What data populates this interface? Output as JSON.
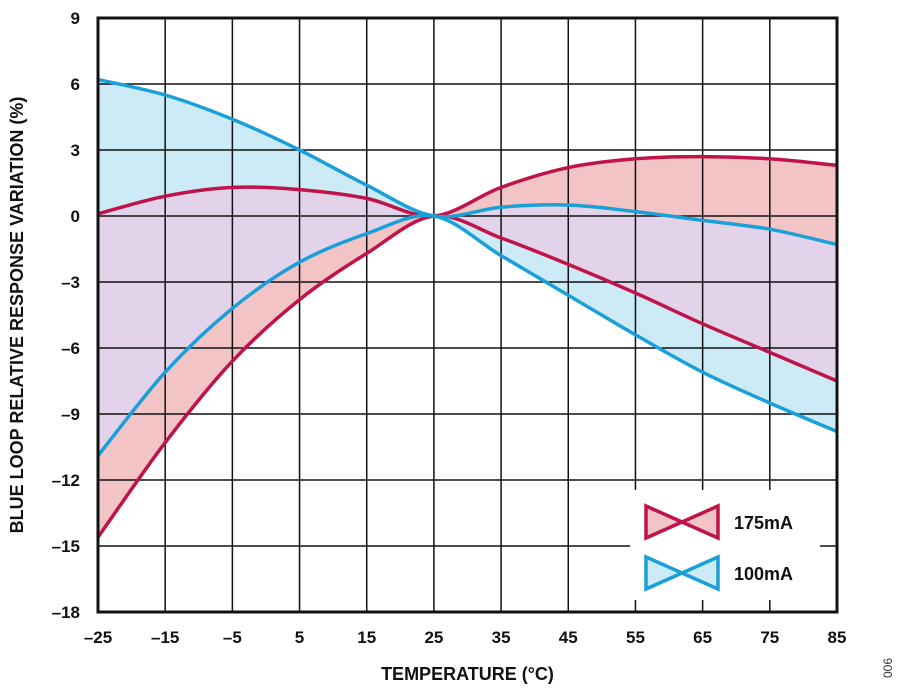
{
  "chart_data": {
    "type": "line",
    "title": "",
    "xlabel": "TEMPERATURE (°C)",
    "ylabel": "BLUE LOOP RELATIVE RESPONSE VARIATION (%)",
    "xlim": [
      -25,
      85
    ],
    "ylim": [
      -18,
      9
    ],
    "x_ticks": [
      "–25",
      "–15",
      "–5",
      "5",
      "15",
      "25",
      "35",
      "45",
      "55",
      "65",
      "75",
      "85"
    ],
    "y_ticks": [
      "9",
      "6",
      "3",
      "0",
      "–3",
      "–6",
      "–9",
      "–12",
      "–15",
      "–18"
    ],
    "grid": true,
    "legend_position": "bottom-right",
    "x": [
      -25,
      -15,
      -5,
      5,
      15,
      25,
      35,
      45,
      55,
      65,
      75,
      85
    ],
    "series": [
      {
        "name": "175mA",
        "color": "#c0134a",
        "fill": "#f2c4c6",
        "upper": [
          0.1,
          0.9,
          1.3,
          1.2,
          0.8,
          0.0,
          1.3,
          2.2,
          2.6,
          2.7,
          2.6,
          2.3
        ],
        "lower": [
          -14.6,
          -10.3,
          -6.6,
          -3.8,
          -1.7,
          0.0,
          -1.0,
          -2.2,
          -3.5,
          -4.9,
          -6.2,
          -7.5
        ]
      },
      {
        "name": "100mA",
        "color": "#1aa0d8",
        "fill": "#cdeaf7",
        "upper": [
          6.2,
          5.5,
          4.4,
          3.0,
          1.4,
          0.0,
          0.4,
          0.5,
          0.2,
          -0.2,
          -0.6,
          -1.3
        ],
        "lower": [
          -10.9,
          -7.1,
          -4.2,
          -2.1,
          -0.8,
          0.0,
          -1.8,
          -3.6,
          -5.4,
          -7.1,
          -8.5,
          -9.8
        ]
      }
    ],
    "overlap_fill": "#e3d3ea"
  },
  "figure_id": "006"
}
